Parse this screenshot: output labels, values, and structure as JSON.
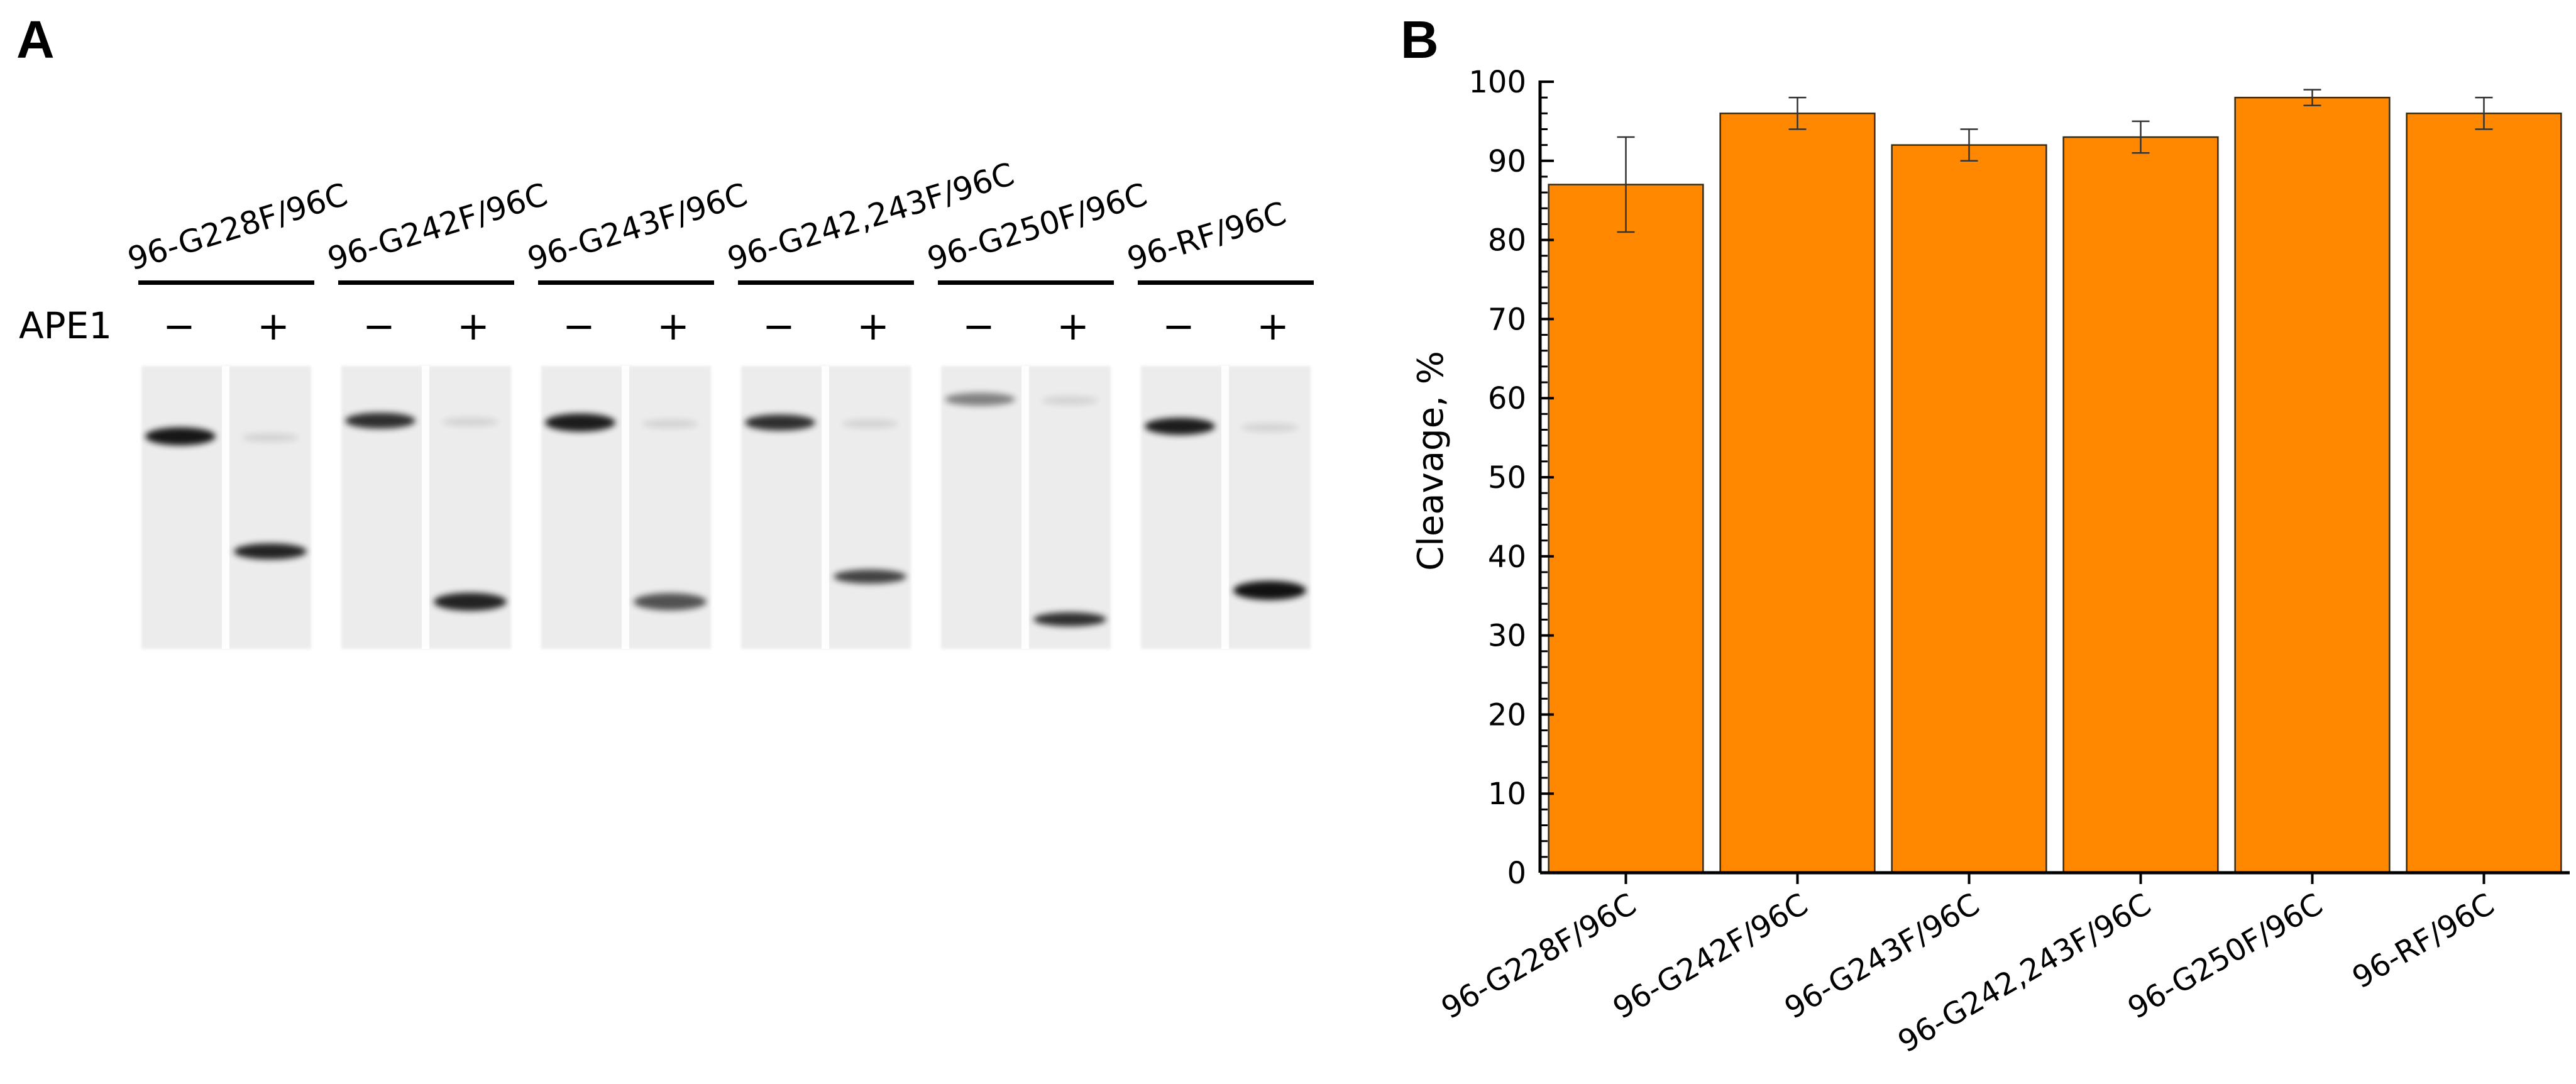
{
  "panels": {
    "a": {
      "letter": "A",
      "row_label": "APE1",
      "lane_signs": [
        "−",
        "+"
      ],
      "gels": [
        {
          "label": "96-G228F/96C"
        },
        {
          "label": "96-G242F/96C"
        },
        {
          "label": "96-G243F/96C"
        },
        {
          "label": "96-G242,243F/96C"
        },
        {
          "label": "96-G250F/96C"
        },
        {
          "label": "96-RF/96C"
        }
      ]
    },
    "b": {
      "letter": "B"
    }
  },
  "chart_data": {
    "type": "bar",
    "categories": [
      "96-G228F/96C",
      "96-G242F/96C",
      "96-G243F/96C",
      "96-G242,243F/96C",
      "96-G250F/96C",
      "96-RF/96C"
    ],
    "values": [
      87,
      96,
      92,
      93,
      98,
      96
    ],
    "errors": [
      6,
      2,
      2,
      2,
      1,
      2
    ],
    "xlabel": "",
    "ylabel": "Cleavage, %",
    "ylim": [
      0,
      100
    ],
    "yticks": [
      "0",
      "10",
      "20",
      "30",
      "40",
      "50",
      "60",
      "70",
      "80",
      "90",
      "100"
    ],
    "bar_color": "#ff8800",
    "grid": false
  }
}
